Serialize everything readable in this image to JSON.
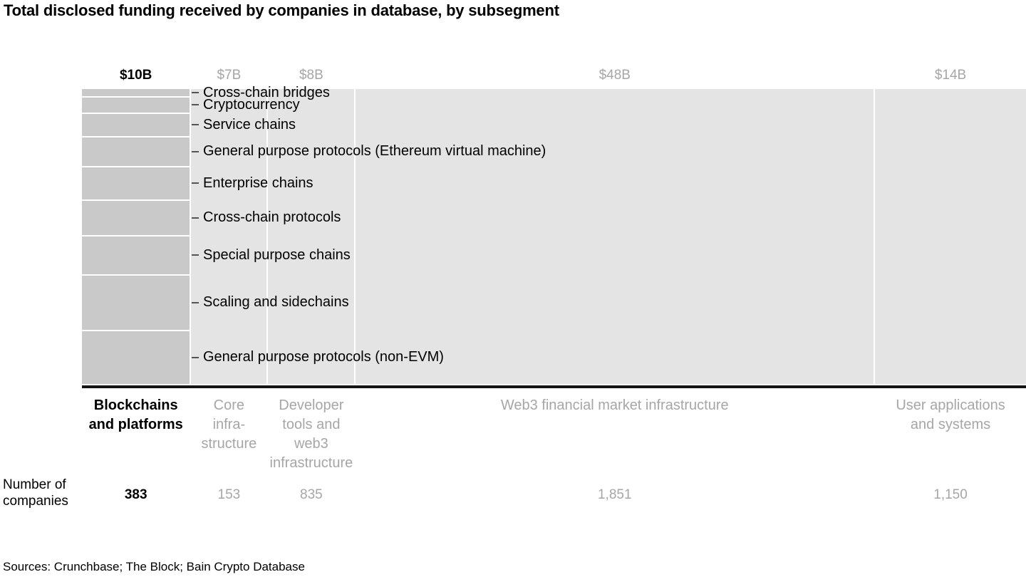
{
  "title": "Total disclosed funding received by companies in database, by subsegment",
  "sources": "Sources: Crunchbase; The Block; Bain Crypto Database",
  "row_label_lines": [
    "Number of",
    "companies"
  ],
  "colors": {
    "background": "#ffffff",
    "text": "#000000",
    "muted_text": "#a6a6a6",
    "highlight_fill": "#c9c9c9",
    "column_fill": "#e4e4e4",
    "tick": "#555555",
    "baseline": "#141414"
  },
  "chart_data": {
    "type": "marimekko",
    "title": "Total disclosed funding received by companies in database, by subsegment",
    "unit": "USD billions (column width proportional to funding)",
    "total_funding_billions": 87,
    "columns": [
      {
        "name": "Blockchains and platforms",
        "label_lines": [
          "Blockchains",
          "and platforms"
        ],
        "funding_label": "$10B",
        "funding_billions": 10,
        "companies": "383",
        "highlighted": true
      },
      {
        "name": "Core infrastructure",
        "label_lines": [
          "Core",
          "infra-",
          "structure"
        ],
        "funding_label": "$7B",
        "funding_billions": 7,
        "companies": "153",
        "highlighted": false
      },
      {
        "name": "Developer tools and web3 infrastructure",
        "label_lines": [
          "Developer",
          "tools and",
          "web3",
          "infrastructure"
        ],
        "funding_label": "$8B",
        "funding_billions": 8,
        "companies": "835",
        "highlighted": false
      },
      {
        "name": "Web3 financial market infrastructure",
        "label_lines": [
          "Web3 financial market infrastructure"
        ],
        "funding_label": "$48B",
        "funding_billions": 48,
        "companies": "1,851",
        "highlighted": false
      },
      {
        "name": "User applications and systems",
        "label_lines": [
          "User applications",
          "and systems"
        ],
        "funding_label": "$14B",
        "funding_billions": 14,
        "companies": "1,150",
        "highlighted": false
      }
    ],
    "highlighted_column_segments": {
      "column": "Blockchains and platforms",
      "segments_top_to_bottom": [
        {
          "label": "Cross-chain bridges",
          "share_pct": 2.6
        },
        {
          "label": "Cryptocurrency",
          "share_pct": 5.1
        },
        {
          "label": "Service chains",
          "share_pct": 7.9
        },
        {
          "label": "General purpose protocols (Ethereum virtual machine)",
          "share_pct": 10.0
        },
        {
          "label": "Enterprise chains",
          "share_pct": 11.3
        },
        {
          "label": "Cross-chain protocols",
          "share_pct": 12.1
        },
        {
          "label": "Special purpose chains",
          "share_pct": 13.3
        },
        {
          "label": "Scaling and sidechains",
          "share_pct": 19.0
        },
        {
          "label": "General purpose protocols (non-EVM)",
          "share_pct": 18.7
        }
      ]
    }
  }
}
